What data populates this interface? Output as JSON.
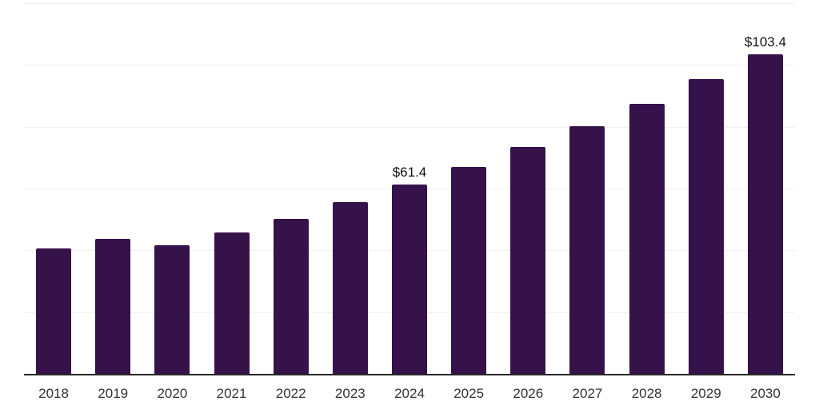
{
  "chart_data": {
    "type": "bar",
    "title": "",
    "categories": [
      "2018",
      "2019",
      "2020",
      "2021",
      "2022",
      "2023",
      "2024",
      "2025",
      "2026",
      "2027",
      "2028",
      "2029",
      "2030"
    ],
    "values": [
      40.7,
      43.7,
      41.6,
      45.9,
      50.3,
      55.5,
      61.4,
      67.0,
      73.4,
      80.3,
      87.4,
      95.4,
      103.4
    ],
    "data_labels": [
      "",
      "",
      "",
      "",
      "",
      "",
      "$61.4",
      "",
      "",
      "",
      "",
      "",
      "$103.4"
    ],
    "xlabel": "",
    "ylabel": "",
    "ylim": [
      0,
      120
    ],
    "gridline_step": 20,
    "grid": "horizontal",
    "legend": "none",
    "colors": {
      "bar": "#35124a",
      "gridline": "#f1f1f1",
      "axis_line": "#262626",
      "x_label": "#333333",
      "data_label": "#111111",
      "background": "#ffffff"
    }
  }
}
